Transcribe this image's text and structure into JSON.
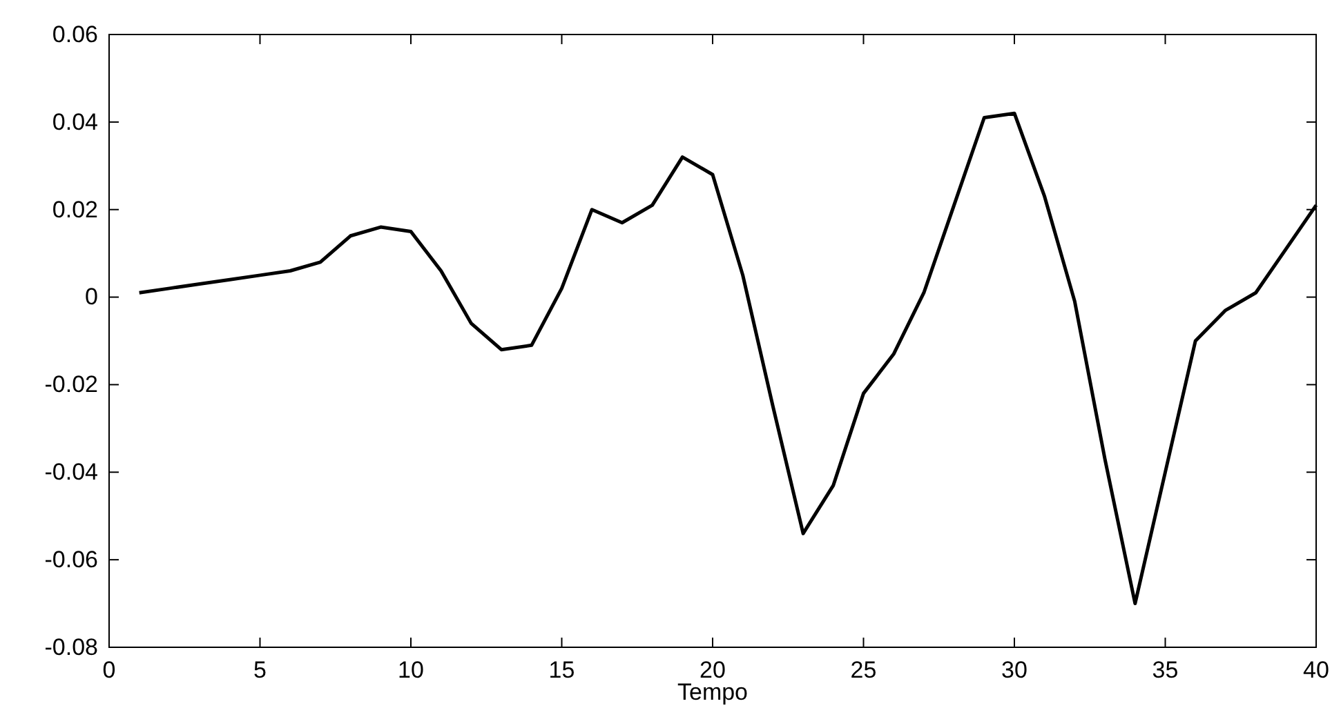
{
  "chart_data": {
    "type": "line",
    "xlabel": "Tempo",
    "x": [
      1,
      2,
      3,
      4,
      5,
      6,
      7,
      8,
      9,
      10,
      11,
      12,
      13,
      14,
      15,
      16,
      17,
      18,
      19,
      20,
      21,
      22,
      23,
      24,
      25,
      26,
      27,
      28,
      29,
      30,
      31,
      32,
      33,
      34,
      35,
      36,
      37,
      38,
      39,
      40
    ],
    "series": [
      {
        "color": "#000000",
        "values": [
          0.001,
          0.002,
          0.003,
          0.004,
          0.005,
          0.006,
          0.008,
          0.014,
          0.016,
          0.015,
          0.006,
          -0.006,
          -0.012,
          -0.011,
          0.002,
          0.02,
          0.017,
          0.021,
          0.032,
          0.028,
          0.005,
          -0.025,
          -0.054,
          -0.043,
          -0.022,
          -0.013,
          0.001,
          0.021,
          0.041,
          0.042,
          0.023,
          -0.001,
          -0.037,
          -0.07,
          -0.04,
          -0.01,
          -0.003,
          0.001,
          0.011,
          0.021
        ]
      }
    ],
    "xlim": [
      0,
      40
    ],
    "xticks": [
      0,
      5,
      10,
      15,
      20,
      25,
      30,
      35,
      40
    ],
    "ylim": [
      -0.08,
      0.06
    ],
    "yticks": [
      {
        "value": -0.08,
        "label": "-0.08"
      },
      {
        "value": -0.06,
        "label": "-0.06"
      },
      {
        "value": -0.04,
        "label": "-0.04"
      },
      {
        "value": -0.02,
        "label": "-0.02"
      },
      {
        "value": 0,
        "label": "0"
      },
      {
        "value": 0.02,
        "label": "0.02"
      },
      {
        "value": 0.04,
        "label": "0.04"
      },
      {
        "value": 0.06,
        "label": "0.06"
      }
    ],
    "marker": "none",
    "line_style": "solid"
  }
}
